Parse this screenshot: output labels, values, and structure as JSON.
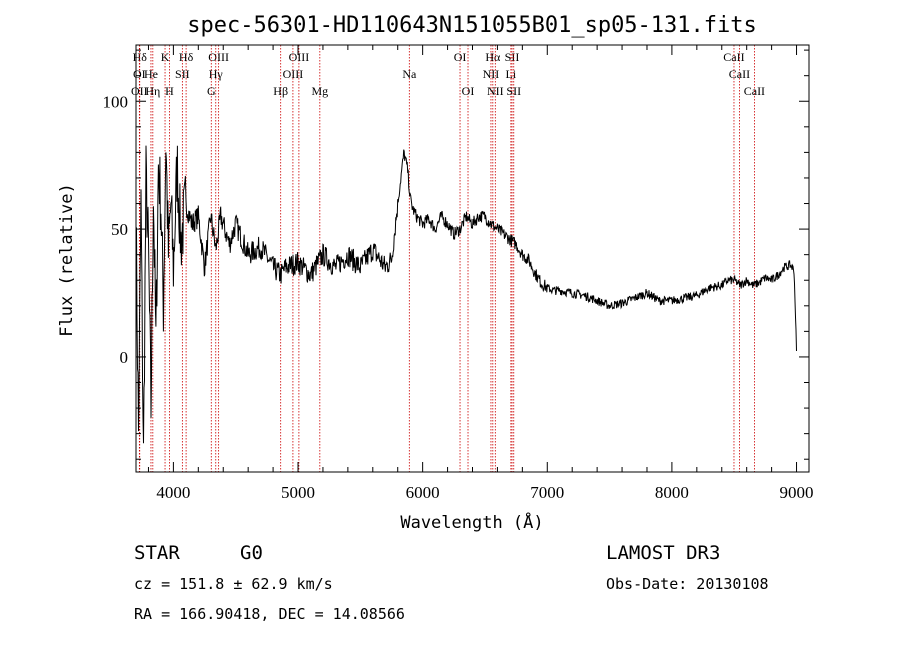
{
  "chart_data": {
    "type": "line",
    "title": "spec-56301-HD110643N151055B01_sp05-131.fits",
    "xlabel": "Wavelength (Å)",
    "ylabel": "Flux (relative)",
    "xlim": [
      3700,
      9100
    ],
    "ylim": [
      -45,
      122
    ],
    "xticks": [
      4000,
      5000,
      6000,
      7000,
      8000,
      9000
    ],
    "yticks": [
      0,
      50,
      100
    ],
    "series": [
      {
        "name": "flux",
        "x": [
          3700,
          3720,
          3740,
          3760,
          3780,
          3800,
          3820,
          3840,
          3860,
          3880,
          3900,
          3920,
          3940,
          3960,
          3980,
          4000,
          4030,
          4060,
          4100,
          4150,
          4200,
          4250,
          4300,
          4340,
          4380,
          4450,
          4500,
          4600,
          4700,
          4800,
          4860,
          4900,
          5000,
          5100,
          5200,
          5300,
          5400,
          5500,
          5600,
          5700,
          5750,
          5800,
          5850,
          5880,
          5900,
          5920,
          5950,
          6000,
          6050,
          6100,
          6150,
          6200,
          6250,
          6300,
          6350,
          6400,
          6450,
          6500,
          6550,
          6600,
          6650,
          6700,
          6750,
          6800,
          6850,
          6900,
          6950,
          7000,
          7050,
          7100,
          7200,
          7300,
          7400,
          7500,
          7600,
          7700,
          7800,
          7900,
          8000,
          8100,
          8200,
          8300,
          8400,
          8450,
          8500,
          8550,
          8600,
          8650,
          8700,
          8750,
          8800,
          8850,
          8900,
          8950,
          8980,
          8990,
          9000
        ],
        "y": [
          55,
          -30,
          60,
          -40,
          70,
          40,
          -20,
          65,
          5,
          75,
          60,
          20,
          85,
          40,
          60,
          35,
          75,
          45,
          60,
          52,
          55,
          35,
          55,
          42,
          55,
          44,
          52,
          40,
          43,
          35,
          32,
          35,
          37,
          32,
          40,
          35,
          40,
          35,
          42,
          35,
          38,
          60,
          80,
          73,
          62,
          58,
          55,
          52,
          54,
          50,
          55,
          52,
          48,
          50,
          55,
          52,
          55,
          55,
          52,
          50,
          48,
          46,
          44,
          40,
          38,
          33,
          29,
          27,
          26,
          26,
          25,
          24,
          22,
          20,
          21,
          23,
          25,
          22,
          22,
          23,
          24,
          27,
          28,
          30,
          30,
          28,
          30,
          28,
          29,
          31,
          30,
          32,
          35,
          36,
          34,
          20,
          2
        ]
      }
    ],
    "lines": [
      {
        "label": "Hδ",
        "x": 3730,
        "row": 1
      },
      {
        "label": "K",
        "x": 3933,
        "row": 1
      },
      {
        "label": "Hδ",
        "x": 4102,
        "row": 1
      },
      {
        "label": "OIII",
        "x": 4363,
        "row": 1
      },
      {
        "label": "OIII",
        "x": 5007,
        "row": 1
      },
      {
        "label": "OI",
        "x": 6300,
        "row": 1
      },
      {
        "label": "Hα",
        "x": 6563,
        "row": 1
      },
      {
        "label": "SII",
        "x": 6717,
        "row": 1
      },
      {
        "label": "CaII",
        "x": 8498,
        "row": 1
      },
      {
        "label": "OI",
        "x": 3727,
        "row": 2
      },
      {
        "label": "He",
        "x": 3820,
        "row": 2
      },
      {
        "label": "SII",
        "x": 4072,
        "row": 2
      },
      {
        "label": "Hγ",
        "x": 4340,
        "row": 2
      },
      {
        "label": "OIII",
        "x": 4959,
        "row": 2
      },
      {
        "label": "Na",
        "x": 5893,
        "row": 2
      },
      {
        "label": "NII",
        "x": 6548,
        "row": 2
      },
      {
        "label": "Li",
        "x": 6708,
        "row": 2
      },
      {
        "label": "CaII",
        "x": 8542,
        "row": 2
      },
      {
        "label": "OII",
        "x": 3727,
        "row": 3
      },
      {
        "label": "Hη",
        "x": 3835,
        "row": 3
      },
      {
        "label": "H",
        "x": 3968,
        "row": 3
      },
      {
        "label": "G",
        "x": 4304,
        "row": 3
      },
      {
        "label": "Hβ",
        "x": 4861,
        "row": 3
      },
      {
        "label": "Mg",
        "x": 5175,
        "row": 3
      },
      {
        "label": "OI",
        "x": 6364,
        "row": 3
      },
      {
        "label": "NII",
        "x": 6583,
        "row": 3
      },
      {
        "label": "SII",
        "x": 6731,
        "row": 3
      },
      {
        "label": "CaII",
        "x": 8662,
        "row": 3
      }
    ],
    "colors": {
      "spectrum": "#000000",
      "lines": "#cc0000",
      "axes": "#000000"
    }
  },
  "info": {
    "class": "STAR",
    "subclass": "G0",
    "survey": "LAMOST DR3",
    "cz": "cz = 151.8 ± 62.9 km/s",
    "obs_date": "Obs-Date: 20130108",
    "radec": "RA = 166.90418, DEC =  14.08566"
  }
}
